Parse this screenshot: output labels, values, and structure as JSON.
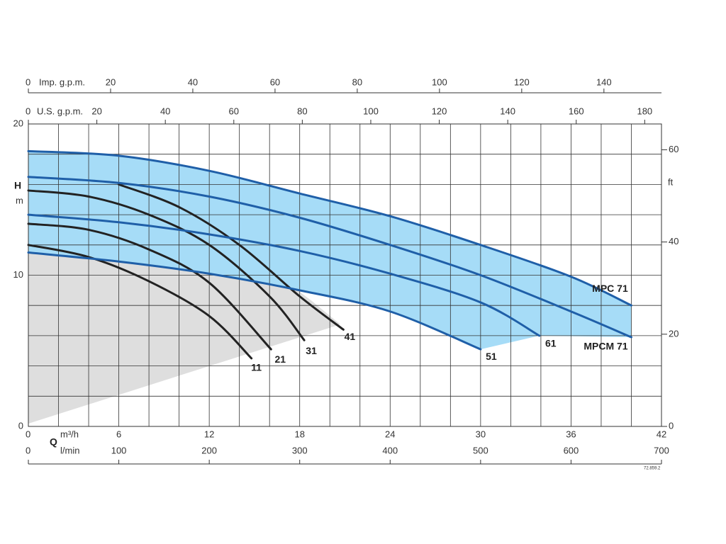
{
  "chart_data": {
    "type": "line",
    "q_label": "Q",
    "code": "72.859.2",
    "x_axes": [
      {
        "label": "m³/h",
        "xlim": [
          0,
          42
        ],
        "xticks": [
          0,
          6,
          12,
          18,
          24,
          30,
          36,
          42
        ]
      },
      {
        "label": "l/min",
        "xlim": [
          0,
          700
        ],
        "xticks": [
          0,
          100,
          200,
          300,
          400,
          500,
          600,
          700
        ]
      },
      {
        "label": "U.S. g.p.m.",
        "xlim": [
          0,
          184.9
        ],
        "xticks": [
          0,
          20,
          40,
          60,
          80,
          100,
          120,
          140,
          160,
          180
        ]
      },
      {
        "label": "Imp. g.p.m.",
        "xlim": [
          0,
          154
        ],
        "xticks": [
          0,
          20,
          40,
          60,
          80,
          100,
          120,
          140
        ]
      }
    ],
    "y_axis": {
      "label": "H",
      "unit": "m",
      "ylim": [
        0,
        20
      ],
      "yticks": [
        0,
        10,
        20
      ]
    },
    "y2_axis": {
      "label": "ft",
      "y2lim": [
        0,
        65.6
      ],
      "y2ticks": [
        0,
        20,
        40,
        60
      ]
    },
    "grid_x": [
      0,
      2,
      4,
      6,
      8,
      10,
      12,
      14,
      16,
      18,
      20,
      22,
      24,
      26,
      28,
      30,
      32,
      34,
      36,
      38,
      40,
      42
    ],
    "grid_y": [
      0,
      2,
      4,
      6,
      8,
      10,
      12,
      14,
      16,
      18,
      20
    ],
    "series": [
      {
        "name": "11",
        "color": "#222222",
        "x": [
          0,
          4,
          8,
          12,
          14.8
        ],
        "values": [
          12.0,
          11.2,
          9.6,
          7.3,
          4.5
        ]
      },
      {
        "name": "21",
        "color": "#222222",
        "x": [
          0,
          4,
          8,
          12,
          16.1
        ],
        "values": [
          13.4,
          13.0,
          11.7,
          9.5,
          5.1
        ]
      },
      {
        "name": "31",
        "color": "#222222",
        "x": [
          0,
          4,
          8,
          12,
          16,
          18.3
        ],
        "values": [
          15.6,
          15.2,
          14.0,
          12.0,
          8.6,
          5.7
        ]
      },
      {
        "name": "41",
        "color": "#222222",
        "x": [
          6,
          10,
          14,
          18,
          20.9
        ],
        "values": [
          16.0,
          14.5,
          12.0,
          8.6,
          6.4
        ]
      },
      {
        "name": "51",
        "color": "#1f5fa8",
        "x": [
          0,
          6,
          12,
          18,
          24,
          30
        ],
        "values": [
          11.5,
          10.9,
          10.1,
          9.0,
          7.6,
          5.1
        ]
      },
      {
        "name": "61",
        "color": "#1f5fa8",
        "x": [
          0,
          6,
          12,
          18,
          24,
          30,
          33.9
        ],
        "values": [
          14.0,
          13.5,
          12.7,
          11.6,
          10.1,
          8.2,
          6.0
        ]
      },
      {
        "name": "MPCM 71",
        "color": "#1f5fa8",
        "x": [
          0,
          6,
          12,
          18,
          24,
          30,
          36,
          40
        ],
        "values": [
          16.5,
          16.1,
          15.2,
          13.8,
          12.0,
          10.0,
          7.6,
          5.9
        ]
      },
      {
        "name": "MPC 71",
        "color": "#1f5fa8",
        "x": [
          0,
          6,
          12,
          18,
          24,
          30,
          36,
          40
        ],
        "values": [
          18.2,
          17.9,
          16.9,
          15.4,
          13.9,
          12.0,
          9.9,
          8.0
        ]
      }
    ]
  }
}
